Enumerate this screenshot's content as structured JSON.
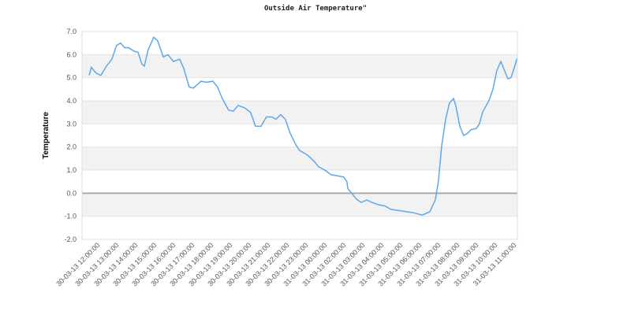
{
  "chart_data": {
    "type": "line",
    "title": "Outside Air Temperature\"",
    "xlabel": "",
    "ylabel": "Temperature",
    "ylim": [
      -2,
      7
    ],
    "yticks": [
      "7.0",
      "6.0",
      "5.0",
      "4.0",
      "3.0",
      "2.0",
      "1.0",
      "0.0",
      "-1.0",
      "-2.0"
    ],
    "xticks": [
      "30-03-13 12:00:00",
      "30-03-13 13:00:00",
      "30-03-13 14:00:00",
      "30-03-13 15:00:00",
      "30-03-13 16:00:00",
      "30-03-13 17:00:00",
      "30-03-13 18:00:00",
      "30-03-13 19:00:00",
      "30-03-13 20:00:00",
      "30-03-13 21:00:00",
      "30-03-13 22:00:00",
      "30-03-13 23:00:00",
      "31-03-13 00:00:00",
      "31-03-13 02:00:00",
      "31-03-13 03:00:00",
      "31-03-13 04:00:00",
      "31-03-13 05:00:00",
      "31-03-13 06:00:00",
      "31-03-13 07:00:00",
      "31-03-13 08:00:00",
      "31-03-13 09:00:00",
      "31-03-13 10:00:00",
      "31-03-13 11:00:00"
    ],
    "grid": "alternating horizontal bands",
    "line_color": "#5fa8e8",
    "points": [
      [
        "30 11:35",
        5.1
      ],
      [
        "30 11:42",
        5.45
      ],
      [
        "30 11:57",
        5.2
      ],
      [
        "30 12:12",
        5.1
      ],
      [
        "30 12:30",
        5.5
      ],
      [
        "30 12:47",
        5.8
      ],
      [
        "30 13:02",
        6.4
      ],
      [
        "30 13:15",
        6.5
      ],
      [
        "30 13:27",
        6.3
      ],
      [
        "30 13:40",
        6.3
      ],
      [
        "30 13:57",
        6.15
      ],
      [
        "30 14:10",
        6.1
      ],
      [
        "30 14:22",
        5.6
      ],
      [
        "30 14:30",
        5.5
      ],
      [
        "30 14:42",
        6.2
      ],
      [
        "30 15:00",
        6.75
      ],
      [
        "30 15:12",
        6.6
      ],
      [
        "30 15:30",
        5.9
      ],
      [
        "30 15:45",
        6.0
      ],
      [
        "30 16:02",
        5.7
      ],
      [
        "30 16:22",
        5.8
      ],
      [
        "30 16:35",
        5.4
      ],
      [
        "30 16:52",
        4.6
      ],
      [
        "30 17:05",
        4.55
      ],
      [
        "30 17:30",
        4.85
      ],
      [
        "30 17:47",
        4.8
      ],
      [
        "30 18:07",
        4.85
      ],
      [
        "30 18:22",
        4.6
      ],
      [
        "30 18:37",
        4.1
      ],
      [
        "30 18:57",
        3.6
      ],
      [
        "30 19:12",
        3.55
      ],
      [
        "30 19:27",
        3.8
      ],
      [
        "30 19:47",
        3.7
      ],
      [
        "30 20:07",
        3.5
      ],
      [
        "30 20:22",
        2.9
      ],
      [
        "30 20:40",
        2.9
      ],
      [
        "30 20:57",
        3.3
      ],
      [
        "30 21:15",
        3.3
      ],
      [
        "30 21:27",
        3.2
      ],
      [
        "30 21:42",
        3.4
      ],
      [
        "30 21:57",
        3.2
      ],
      [
        "30 22:12",
        2.6
      ],
      [
        "30 22:30",
        2.1
      ],
      [
        "30 22:42",
        1.85
      ],
      [
        "30 23:07",
        1.65
      ],
      [
        "30 23:27",
        1.4
      ],
      [
        "30 23:42",
        1.15
      ],
      [
        "31 00:02",
        1.0
      ],
      [
        "31 00:22",
        0.8
      ],
      [
        "31 00:42",
        0.75
      ],
      [
        "31 02:02",
        0.7
      ],
      [
        "31 02:12",
        0.5
      ],
      [
        "31 02:15",
        0.2
      ],
      [
        "31 02:27",
        0.0
      ],
      [
        "31 02:42",
        -0.25
      ],
      [
        "31 02:57",
        -0.4
      ],
      [
        "31 03:15",
        -0.3
      ],
      [
        "31 03:32",
        -0.4
      ],
      [
        "31 03:52",
        -0.5
      ],
      [
        "31 04:12",
        -0.55
      ],
      [
        "31 04:32",
        -0.7
      ],
      [
        "31 04:55",
        -0.75
      ],
      [
        "31 05:20",
        -0.8
      ],
      [
        "31 05:45",
        -0.85
      ],
      [
        "31 06:10",
        -0.95
      ],
      [
        "31 06:35",
        -0.8
      ],
      [
        "31 06:52",
        -0.3
      ],
      [
        "31 07:02",
        0.5
      ],
      [
        "31 07:12",
        2.0
      ],
      [
        "31 07:25",
        3.2
      ],
      [
        "31 07:37",
        3.9
      ],
      [
        "31 07:50",
        4.1
      ],
      [
        "31 07:57",
        3.8
      ],
      [
        "31 08:10",
        2.9
      ],
      [
        "31 08:22",
        2.5
      ],
      [
        "31 08:35",
        2.6
      ],
      [
        "31 08:45",
        2.75
      ],
      [
        "31 09:02",
        2.8
      ],
      [
        "31 09:12",
        3.0
      ],
      [
        "31 09:22",
        3.5
      ],
      [
        "31 09:42",
        4.0
      ],
      [
        "31 09:55",
        4.5
      ],
      [
        "31 10:07",
        5.3
      ],
      [
        "31 10:20",
        5.7
      ],
      [
        "31 10:32",
        5.3
      ],
      [
        "31 10:42",
        4.95
      ],
      [
        "31 10:52",
        5.0
      ],
      [
        "31 11:02",
        5.4
      ],
      [
        "31 11:12",
        5.85
      ]
    ]
  }
}
